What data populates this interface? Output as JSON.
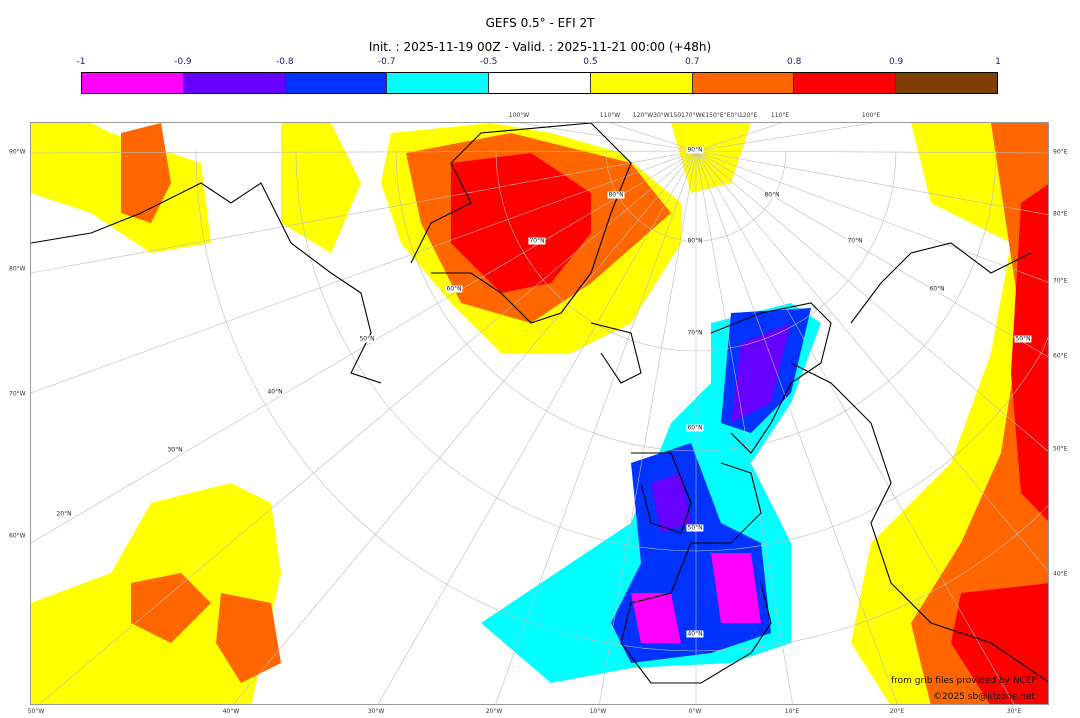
{
  "header": {
    "title": "GEFS 0.5° - EFI 2T",
    "subtitle": "Init. : 2025-11-19 00Z - Valid. : 2025-11-21 00:00 (+48h)"
  },
  "colorbar": {
    "ticks": [
      "-1",
      "-0.9",
      "-0.8",
      "-0.7",
      "-0.5",
      "0.5",
      "0.7",
      "0.8",
      "0.9",
      "1"
    ],
    "colors": [
      "#ff00ff",
      "#6600ff",
      "#0033ff",
      "#00ffff",
      "#ffffff",
      "#ffff00",
      "#ff6600",
      "#ff0000",
      "#7f3f00"
    ]
  },
  "map": {
    "top_labels": [
      "100°W",
      "110°W",
      "120°W30°W150170°W€150°E°E0°I120°E",
      "110°E",
      "100°E"
    ],
    "bottom_labels": [
      "50°W",
      "40°W",
      "30°W",
      "20°W",
      "10°W",
      "0°W",
      "10°E",
      "20°E",
      "30°E"
    ],
    "left_labels": [
      "90°W",
      "80°W",
      "70°W",
      "60°W"
    ],
    "right_labels": [
      "90°E",
      "80°E",
      "70°E",
      "60°E",
      "50°E",
      "40°E"
    ],
    "lat_labels": [
      "90°N",
      "80°N",
      "80°N",
      "70°N",
      "80°N",
      "70°N",
      "60°N",
      "60°N",
      "50°N",
      "70°N",
      "50°N",
      "40°N",
      "60°N",
      "30°N",
      "50°N",
      "20°N",
      "40°N"
    ]
  },
  "credits": {
    "source": "from grib files provided by NCEP",
    "copyright": "©2025 sb@irizone.net"
  }
}
